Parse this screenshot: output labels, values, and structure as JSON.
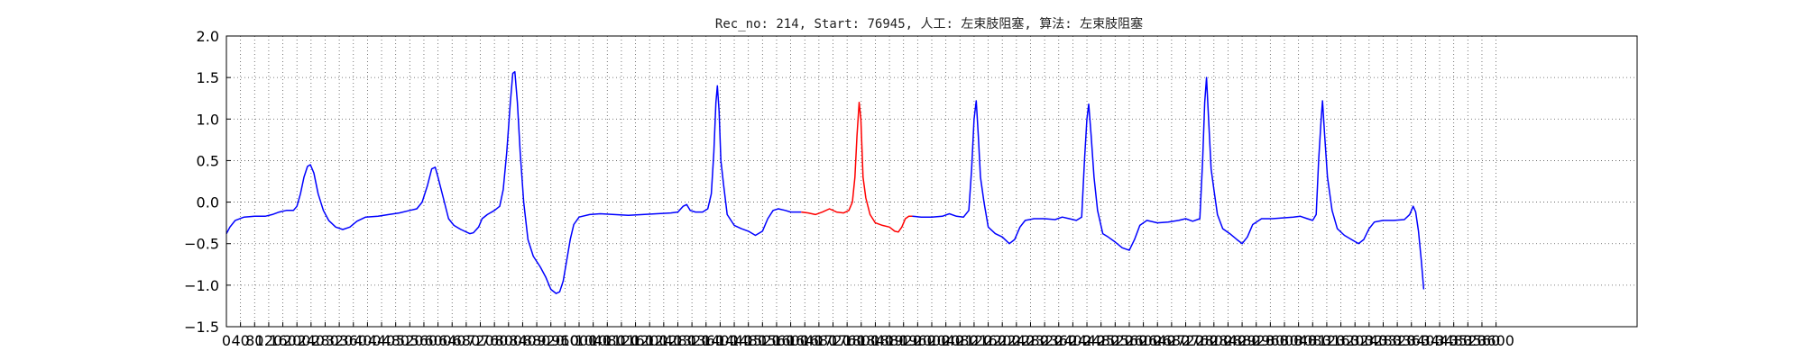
{
  "chart_data": {
    "type": "line",
    "title": "Rec_no: 214, Start: 76945, 人工: 左束肢阻塞, 算法: 左束肢阻塞",
    "xlabel": "",
    "ylabel": "",
    "xlim": [
      0,
      4000
    ],
    "ylim": [
      -1.5,
      2.0
    ],
    "grid": true,
    "grid_style": "dotted",
    "xticks": [
      0,
      40,
      80,
      120,
      160,
      200,
      240,
      280,
      320,
      360,
      400,
      440,
      480,
      520,
      560,
      600,
      640,
      680,
      720,
      760,
      800,
      840,
      880,
      920,
      960,
      1000,
      1040,
      1080,
      1120,
      1160,
      1200,
      1240,
      1280,
      1320,
      1360,
      1400,
      1440,
      1480,
      1520,
      1560,
      1600,
      1640,
      1680,
      1720,
      1760,
      1800,
      1840,
      1880,
      1920,
      1960,
      2000,
      2040,
      2080,
      2120,
      2160,
      2200,
      2240,
      2280,
      2320,
      2360,
      2400,
      2440,
      2480,
      2520,
      2560,
      2600,
      2640,
      2680,
      2720,
      2760,
      2800,
      2840,
      2880,
      2920,
      2960,
      3000,
      3040,
      3080,
      3120,
      3160,
      3200,
      3240,
      3280,
      3320,
      3360,
      3400,
      3440,
      3480,
      3520,
      3560,
      3600
    ],
    "yticks": [
      -1.5,
      -1.0,
      -0.5,
      0.0,
      0.5,
      1.0,
      1.5,
      2.0
    ],
    "ytick_labels": [
      "−1.5",
      "−1.0",
      "−0.5",
      "0.0",
      "0.5",
      "1.0",
      "1.5",
      "2.0"
    ],
    "series": [
      {
        "color": "#0000ff",
        "points": [
          [
            0,
            -0.38
          ],
          [
            10,
            -0.3
          ],
          [
            25,
            -0.22
          ],
          [
            50,
            -0.18
          ],
          [
            80,
            -0.17
          ],
          [
            110,
            -0.17
          ],
          [
            130,
            -0.15
          ],
          [
            150,
            -0.12
          ],
          [
            170,
            -0.1
          ],
          [
            190,
            -0.1
          ],
          [
            200,
            -0.05
          ],
          [
            210,
            0.1
          ],
          [
            220,
            0.3
          ],
          [
            230,
            0.43
          ],
          [
            238,
            0.45
          ],
          [
            248,
            0.35
          ],
          [
            260,
            0.1
          ],
          [
            275,
            -0.1
          ],
          [
            290,
            -0.22
          ],
          [
            310,
            -0.3
          ],
          [
            330,
            -0.33
          ],
          [
            350,
            -0.3
          ],
          [
            370,
            -0.23
          ],
          [
            395,
            -0.18
          ],
          [
            430,
            -0.17
          ],
          [
            460,
            -0.15
          ],
          [
            490,
            -0.13
          ],
          [
            520,
            -0.1
          ],
          [
            540,
            -0.08
          ],
          [
            555,
            0.0
          ],
          [
            570,
            0.2
          ],
          [
            582,
            0.4
          ],
          [
            592,
            0.42
          ],
          [
            600,
            0.3
          ],
          [
            615,
            0.05
          ],
          [
            630,
            -0.2
          ],
          [
            645,
            -0.28
          ],
          [
            665,
            -0.33
          ],
          [
            690,
            -0.38
          ],
          [
            700,
            -0.37
          ],
          [
            715,
            -0.3
          ],
          [
            725,
            -0.2
          ],
          [
            740,
            -0.15
          ],
          [
            760,
            -0.1
          ],
          [
            775,
            -0.05
          ],
          [
            785,
            0.15
          ],
          [
            795,
            0.6
          ],
          [
            805,
            1.2
          ],
          [
            812,
            1.55
          ],
          [
            818,
            1.57
          ],
          [
            825,
            1.2
          ],
          [
            833,
            0.6
          ],
          [
            843,
            0.0
          ],
          [
            855,
            -0.45
          ],
          [
            870,
            -0.65
          ],
          [
            890,
            -0.78
          ],
          [
            905,
            -0.9
          ],
          [
            920,
            -1.05
          ],
          [
            935,
            -1.1
          ],
          [
            945,
            -1.08
          ],
          [
            955,
            -0.95
          ],
          [
            965,
            -0.7
          ],
          [
            975,
            -0.45
          ],
          [
            985,
            -0.27
          ],
          [
            1000,
            -0.18
          ],
          [
            1030,
            -0.15
          ],
          [
            1060,
            -0.14
          ],
          [
            1100,
            -0.15
          ],
          [
            1140,
            -0.16
          ],
          [
            1180,
            -0.15
          ],
          [
            1220,
            -0.14
          ],
          [
            1260,
            -0.13
          ],
          [
            1280,
            -0.12
          ],
          [
            1295,
            -0.05
          ],
          [
            1305,
            -0.03
          ],
          [
            1315,
            -0.1
          ],
          [
            1330,
            -0.12
          ],
          [
            1350,
            -0.12
          ],
          [
            1365,
            -0.08
          ],
          [
            1375,
            0.1
          ],
          [
            1382,
            0.6
          ],
          [
            1388,
            1.2
          ],
          [
            1392,
            1.4
          ],
          [
            1397,
            1.1
          ],
          [
            1402,
            0.5
          ],
          [
            1410,
            0.2
          ],
          [
            1420,
            -0.15
          ],
          [
            1440,
            -0.28
          ],
          [
            1460,
            -0.32
          ],
          [
            1480,
            -0.35
          ],
          [
            1500,
            -0.4
          ],
          [
            1520,
            -0.35
          ],
          [
            1535,
            -0.2
          ],
          [
            1550,
            -0.1
          ],
          [
            1565,
            -0.08
          ],
          [
            1585,
            -0.1
          ],
          [
            1600,
            -0.12
          ],
          [
            1630,
            -0.12
          ]
        ]
      },
      {
        "color": "#ff0000",
        "points": [
          [
            1630,
            -0.12
          ],
          [
            1650,
            -0.13
          ],
          [
            1670,
            -0.15
          ],
          [
            1690,
            -0.12
          ],
          [
            1710,
            -0.08
          ],
          [
            1730,
            -0.12
          ],
          [
            1750,
            -0.13
          ],
          [
            1765,
            -0.1
          ],
          [
            1775,
            0.0
          ],
          [
            1782,
            0.3
          ],
          [
            1788,
            0.8
          ],
          [
            1794,
            1.2
          ],
          [
            1799,
            1.0
          ],
          [
            1805,
            0.3
          ],
          [
            1813,
            0.05
          ],
          [
            1825,
            -0.15
          ],
          [
            1840,
            -0.25
          ],
          [
            1860,
            -0.28
          ],
          [
            1880,
            -0.3
          ],
          [
            1895,
            -0.35
          ],
          [
            1905,
            -0.36
          ],
          [
            1915,
            -0.3
          ],
          [
            1925,
            -0.2
          ],
          [
            1935,
            -0.17
          ],
          [
            1945,
            -0.17
          ]
        ]
      },
      {
        "color": "#0000ff",
        "points": [
          [
            1945,
            -0.17
          ],
          [
            1970,
            -0.18
          ],
          [
            2000,
            -0.18
          ],
          [
            2030,
            -0.17
          ],
          [
            2050,
            -0.14
          ],
          [
            2070,
            -0.17
          ],
          [
            2090,
            -0.18
          ],
          [
            2105,
            -0.1
          ],
          [
            2113,
            0.4
          ],
          [
            2120,
            1.0
          ],
          [
            2126,
            1.22
          ],
          [
            2132,
            0.8
          ],
          [
            2138,
            0.3
          ],
          [
            2148,
            0.0
          ],
          [
            2160,
            -0.3
          ],
          [
            2180,
            -0.38
          ],
          [
            2200,
            -0.42
          ],
          [
            2220,
            -0.5
          ],
          [
            2235,
            -0.45
          ],
          [
            2250,
            -0.3
          ],
          [
            2265,
            -0.22
          ],
          [
            2290,
            -0.2
          ],
          [
            2320,
            -0.2
          ],
          [
            2350,
            -0.21
          ],
          [
            2370,
            -0.18
          ],
          [
            2390,
            -0.2
          ],
          [
            2410,
            -0.22
          ],
          [
            2425,
            -0.18
          ],
          [
            2433,
            0.5
          ],
          [
            2440,
            1.0
          ],
          [
            2445,
            1.18
          ],
          [
            2452,
            0.8
          ],
          [
            2460,
            0.3
          ],
          [
            2470,
            -0.1
          ],
          [
            2485,
            -0.38
          ],
          [
            2500,
            -0.42
          ],
          [
            2520,
            -0.48
          ],
          [
            2540,
            -0.55
          ],
          [
            2560,
            -0.58
          ],
          [
            2575,
            -0.45
          ],
          [
            2590,
            -0.28
          ],
          [
            2610,
            -0.22
          ],
          [
            2640,
            -0.25
          ],
          [
            2670,
            -0.24
          ],
          [
            2700,
            -0.22
          ],
          [
            2720,
            -0.2
          ],
          [
            2740,
            -0.23
          ],
          [
            2760,
            -0.2
          ],
          [
            2768,
            0.5
          ],
          [
            2774,
            1.2
          ],
          [
            2779,
            1.5
          ],
          [
            2785,
            1.0
          ],
          [
            2792,
            0.4
          ],
          [
            2800,
            0.15
          ],
          [
            2810,
            -0.15
          ],
          [
            2825,
            -0.32
          ],
          [
            2845,
            -0.38
          ],
          [
            2865,
            -0.45
          ],
          [
            2880,
            -0.5
          ],
          [
            2895,
            -0.42
          ],
          [
            2910,
            -0.27
          ],
          [
            2935,
            -0.2
          ],
          [
            2965,
            -0.2
          ],
          [
            2995,
            -0.19
          ],
          [
            3025,
            -0.18
          ],
          [
            3045,
            -0.17
          ],
          [
            3065,
            -0.2
          ],
          [
            3080,
            -0.22
          ],
          [
            3090,
            -0.15
          ],
          [
            3097,
            0.5
          ],
          [
            3104,
            1.0
          ],
          [
            3108,
            1.22
          ],
          [
            3114,
            0.8
          ],
          [
            3122,
            0.3
          ],
          [
            3135,
            -0.1
          ],
          [
            3150,
            -0.32
          ],
          [
            3170,
            -0.4
          ],
          [
            3190,
            -0.45
          ],
          [
            3210,
            -0.5
          ],
          [
            3225,
            -0.45
          ],
          [
            3240,
            -0.32
          ],
          [
            3255,
            -0.24
          ],
          [
            3280,
            -0.22
          ],
          [
            3310,
            -0.22
          ],
          [
            3340,
            -0.21
          ],
          [
            3355,
            -0.15
          ],
          [
            3365,
            -0.05
          ],
          [
            3372,
            -0.12
          ],
          [
            3380,
            -0.35
          ],
          [
            3388,
            -0.7
          ],
          [
            3395,
            -1.05
          ]
        ]
      }
    ]
  }
}
